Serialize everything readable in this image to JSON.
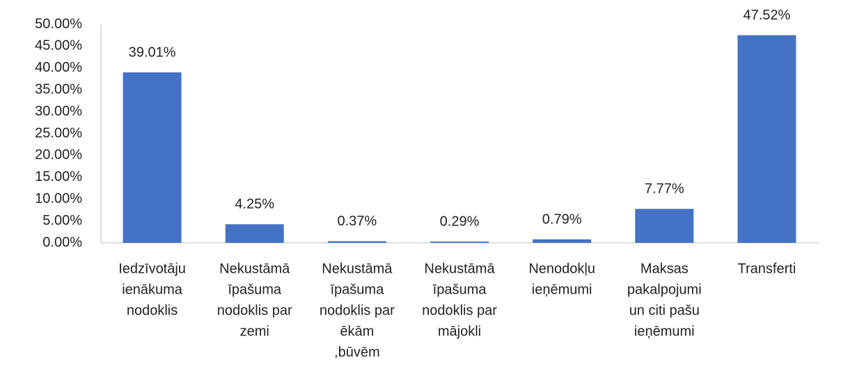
{
  "chart_data": {
    "type": "bar",
    "categories": [
      [
        "Iedzīvotāju",
        "ienākuma",
        "nodoklis"
      ],
      [
        "Nekustāmā",
        "īpašuma",
        "nodoklis par",
        "zemi"
      ],
      [
        "Nekustāmā",
        "īpašuma",
        "nodoklis par",
        "ēkām",
        ",būvēm"
      ],
      [
        "Nekustāmā",
        "īpašuma",
        "nodoklis par",
        "mājokli"
      ],
      [
        "Nenodokļu",
        "ieņēmumi"
      ],
      [
        "Maksas",
        "pakalpojumi",
        "un citi pašu",
        "ieņēmumi"
      ],
      [
        "Transferti"
      ]
    ],
    "values": [
      39.01,
      4.25,
      0.37,
      0.29,
      0.79,
      7.77,
      47.52
    ],
    "value_labels": [
      "39.01%",
      "4.25%",
      "0.37%",
      "0.29%",
      "0.79%",
      "7.77%",
      "47.52%"
    ],
    "color": "#4472c4",
    "ylim": [
      0,
      50
    ],
    "yticks": [
      {
        "value": 0,
        "label": "0.00%"
      },
      {
        "value": 5,
        "label": "5.00%"
      },
      {
        "value": 10,
        "label": "10.00%"
      },
      {
        "value": 15,
        "label": "15.00%"
      },
      {
        "value": 20,
        "label": "20.00%"
      },
      {
        "value": 25,
        "label": "25.00%"
      },
      {
        "value": 30,
        "label": "30.00%"
      },
      {
        "value": 35,
        "label": "35.00%"
      },
      {
        "value": 40,
        "label": "40.00%"
      },
      {
        "value": 45,
        "label": "45.00%"
      },
      {
        "value": 50,
        "label": "50.00%"
      }
    ],
    "grid": false
  }
}
